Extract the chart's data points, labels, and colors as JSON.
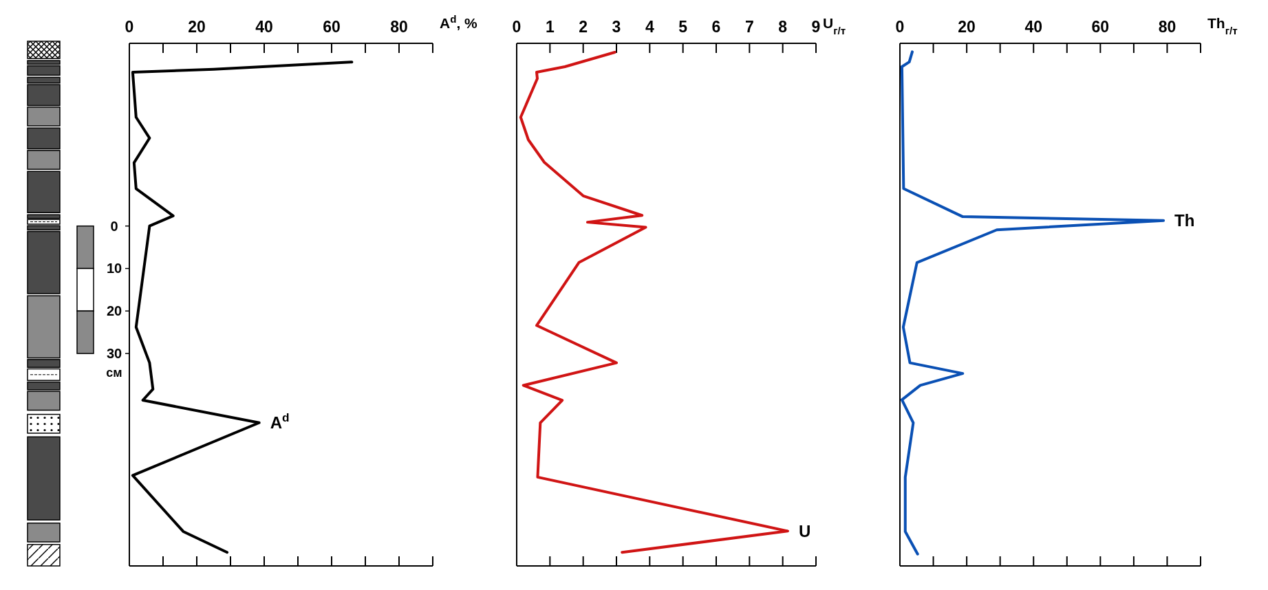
{
  "chart_data": [
    {
      "type": "line",
      "xlabel": "A$^{d}$, %",
      "ylabel": "см",
      "color": "#000000",
      "xlim": [
        0,
        90
      ],
      "xticks": [
        0,
        {
          "value": 10,
          "label": null
        },
        20,
        {
          "value": 30,
          "label": null
        },
        40,
        {
          "value": 50,
          "label": null
        },
        60,
        {
          "value": 70,
          "label": null
        },
        80,
        {
          "value": 90,
          "label": null
        }
      ],
      "ylim": [
        80,
        -43
      ],
      "yticks": [
        0,
        10,
        20,
        30
      ],
      "x": [
        66,
        25,
        1,
        2,
        6,
        1.4,
        2,
        13,
        6,
        2,
        6,
        7,
        4,
        38.5,
        1,
        16,
        29
      ],
      "values": [
        -38.6,
        -36.9,
        -36.2,
        -25.6,
        -20.7,
        -14.9,
        -8.8,
        -2.4,
        0,
        23.8,
        32.2,
        38.4,
        41,
        46.3,
        58.7,
        71.9,
        76.8
      ],
      "annotations": [
        {
          "text": "A$^{d}$",
          "x": 38.5,
          "y": 46.3
        }
      ]
    },
    {
      "type": "line",
      "xlabel": "U$_{г/т}$",
      "color": "#d01414",
      "xlim": [
        0,
        9
      ],
      "xticks": [
        0,
        1,
        2,
        3,
        4,
        5,
        6,
        7,
        8,
        9
      ],
      "ylim": [
        80,
        -43
      ],
      "tick_labels": "x",
      "x": [
        2.95,
        1.45,
        0.6,
        0.62,
        0.12,
        0.35,
        0.83,
        2,
        3.77,
        2.13,
        3.88,
        1.87,
        0.6,
        3,
        0.2,
        1.37,
        0.71,
        0.63,
        8.15,
        3.17
      ],
      "values": [
        -40.9,
        -37.5,
        -36.2,
        -34.7,
        -25.6,
        -20.3,
        -15,
        -7.1,
        -2.5,
        -0.9,
        0.3,
        8.6,
        23.4,
        32.2,
        37.5,
        41,
        46.3,
        59.1,
        71.8,
        76.8
      ],
      "annotations": [
        {
          "text": "U",
          "x": 8.15,
          "y": 71.8
        }
      ]
    },
    {
      "type": "line",
      "xlabel": "Th$_{г/т}$",
      "color": "#0a50b4",
      "xlim": [
        0,
        90
      ],
      "xticks": [
        0,
        {
          "value": 10,
          "label": null
        },
        20,
        {
          "value": 30,
          "label": null
        },
        40,
        {
          "value": 50,
          "label": null
        },
        60,
        {
          "value": 70,
          "label": null
        },
        80,
        {
          "value": 90,
          "label": null
        }
      ],
      "ylim": [
        80,
        -43
      ],
      "tick_labels": "x",
      "x": [
        3.7,
        2.8,
        0.6,
        1.1,
        18.8,
        78.9,
        29,
        5.1,
        1,
        3,
        18.8,
        6.1,
        0.6,
        4,
        1.6,
        1.6,
        5.3
      ],
      "values": [
        -41,
        -38.6,
        -37.5,
        -8.8,
        -2.2,
        -1.3,
        0.9,
        8.6,
        23.8,
        32.2,
        34.7,
        37.5,
        40.9,
        46.3,
        59.1,
        71.9,
        77.2
      ],
      "annotations": [
        {
          "text": "Th",
          "x": 78.9,
          "y": -1.3
        }
      ]
    }
  ]
}
